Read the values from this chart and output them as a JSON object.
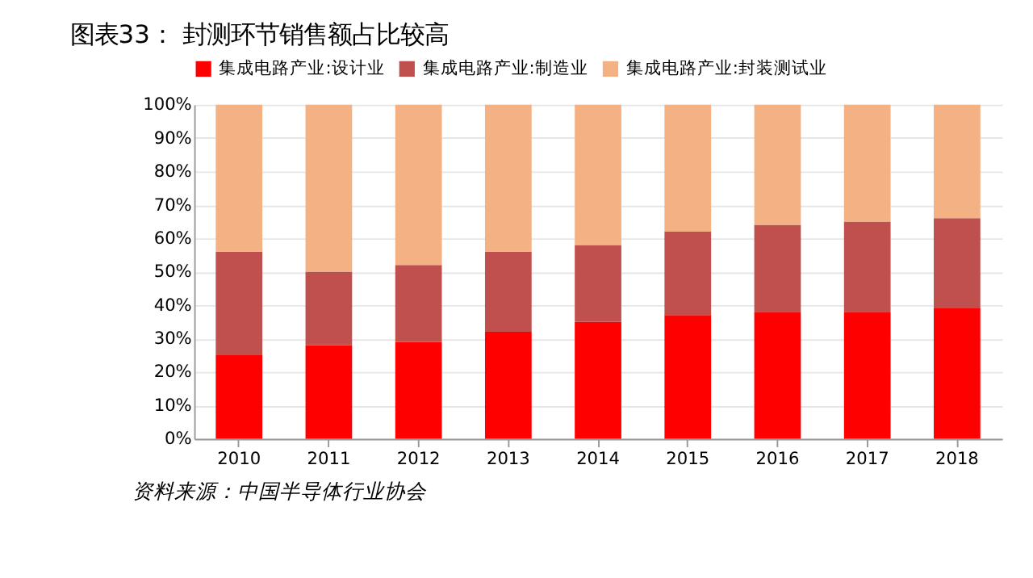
{
  "chart_data": {
    "type": "bar",
    "title": "图表33：        封测环节销售额占比较高",
    "stacked": true,
    "categories": [
      "2010",
      "2011",
      "2012",
      "2013",
      "2014",
      "2015",
      "2016",
      "2017",
      "2018"
    ],
    "series": [
      {
        "name": "集成电路产业:设计业",
        "color": "#ff0000",
        "values": [
          25,
          28,
          29,
          32,
          35,
          37,
          38,
          38,
          39
        ]
      },
      {
        "name": "集成电路产业:制造业",
        "color": "#c0504d",
        "values": [
          31,
          22,
          23,
          24,
          23,
          25,
          26,
          27,
          27
        ]
      },
      {
        "name": "集成电路产业:封装测试业",
        "color": "#f4b183",
        "values": [
          44,
          50,
          48,
          44,
          42,
          38,
          36,
          35,
          34
        ]
      }
    ],
    "ylim": [
      0,
      100
    ],
    "yticks": [
      {
        "value": 0,
        "label": "0%"
      },
      {
        "value": 10,
        "label": "10%"
      },
      {
        "value": 20,
        "label": "20%"
      },
      {
        "value": 30,
        "label": "30%"
      },
      {
        "value": 40,
        "label": "40%"
      },
      {
        "value": 50,
        "label": "50%"
      },
      {
        "value": 60,
        "label": "60%"
      },
      {
        "value": 70,
        "label": "70%"
      },
      {
        "value": 80,
        "label": "80%"
      },
      {
        "value": 90,
        "label": "90%"
      },
      {
        "value": 100,
        "label": "100%"
      }
    ],
    "grid": "y",
    "legend": "top",
    "annotations": [
      "资料来源：中国半导体行业协会"
    ]
  }
}
